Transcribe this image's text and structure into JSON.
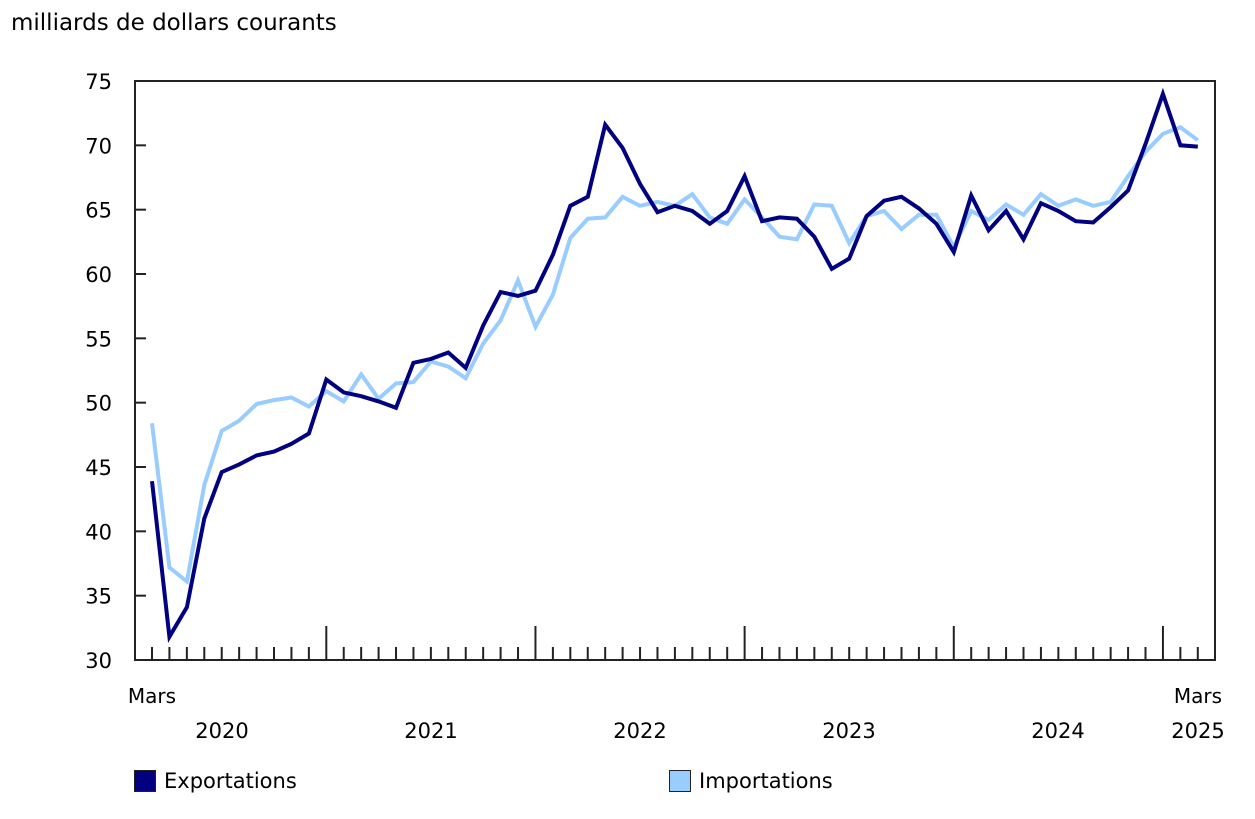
{
  "chart_data": {
    "type": "line",
    "title": "",
    "ylabel": "milliards de dollars courants",
    "xlabel": "",
    "ylim": [
      30,
      75
    ],
    "yticks": [
      30,
      35,
      40,
      45,
      50,
      55,
      60,
      65,
      70,
      75
    ],
    "grid": false,
    "legend_position": "bottom",
    "x_start_label": "Mars",
    "x_end_label": "Mars",
    "year_labels": [
      "2020",
      "2021",
      "2022",
      "2023",
      "2024",
      "2025"
    ],
    "x": [
      "2020-03",
      "2020-04",
      "2020-05",
      "2020-06",
      "2020-07",
      "2020-08",
      "2020-09",
      "2020-10",
      "2020-11",
      "2020-12",
      "2021-01",
      "2021-02",
      "2021-03",
      "2021-04",
      "2021-05",
      "2021-06",
      "2021-07",
      "2021-08",
      "2021-09",
      "2021-10",
      "2021-11",
      "2021-12",
      "2022-01",
      "2022-02",
      "2022-03",
      "2022-04",
      "2022-05",
      "2022-06",
      "2022-07",
      "2022-08",
      "2022-09",
      "2022-10",
      "2022-11",
      "2022-12",
      "2023-01",
      "2023-02",
      "2023-03",
      "2023-04",
      "2023-05",
      "2023-06",
      "2023-07",
      "2023-08",
      "2023-09",
      "2023-10",
      "2023-11",
      "2023-12",
      "2024-01",
      "2024-02",
      "2024-03",
      "2024-04",
      "2024-05",
      "2024-06",
      "2024-07",
      "2024-08",
      "2024-09",
      "2024-10",
      "2024-11",
      "2024-12",
      "2025-01",
      "2025-02",
      "2025-03"
    ],
    "series": [
      {
        "name": "Exportations",
        "color": "#000080",
        "values": [
          43.9,
          31.8,
          34.1,
          41.0,
          44.6,
          45.2,
          45.9,
          46.2,
          46.8,
          47.6,
          51.8,
          50.8,
          50.5,
          50.1,
          49.6,
          53.1,
          53.4,
          53.9,
          52.7,
          56.0,
          58.6,
          58.3,
          58.7,
          61.5,
          65.3,
          66.0,
          71.6,
          69.8,
          67.0,
          64.8,
          65.3,
          64.9,
          63.9,
          64.9,
          67.6,
          64.1,
          64.4,
          64.3,
          62.9,
          60.4,
          61.2,
          64.5,
          65.7,
          66.0,
          65.1,
          63.9,
          61.7,
          66.1,
          63.4,
          64.9,
          62.7,
          65.5,
          64.9,
          64.1,
          64.0,
          65.2,
          66.5,
          70.1,
          74.0,
          70.0,
          69.9
        ]
      },
      {
        "name": "Importations",
        "color": "#99ccff",
        "values": [
          48.4,
          37.2,
          36.1,
          43.6,
          47.8,
          48.6,
          49.9,
          50.2,
          50.4,
          49.7,
          50.9,
          50.1,
          52.2,
          50.3,
          51.5,
          51.6,
          53.2,
          52.8,
          51.9,
          54.6,
          56.4,
          59.5,
          55.9,
          58.4,
          62.8,
          64.3,
          64.4,
          66.0,
          65.3,
          65.6,
          65.3,
          66.2,
          64.4,
          63.9,
          65.8,
          64.4,
          62.9,
          62.7,
          65.4,
          65.3,
          62.4,
          64.5,
          64.9,
          63.5,
          64.6,
          64.6,
          62.1,
          64.9,
          64.2,
          65.4,
          64.6,
          66.2,
          65.3,
          65.8,
          65.3,
          65.6,
          67.6,
          69.5,
          70.9,
          71.4,
          70.4
        ]
      }
    ]
  },
  "legend": {
    "items": [
      {
        "label": "Exportations",
        "color": "#000080"
      },
      {
        "label": "Importations",
        "color": "#99ccff"
      }
    ]
  }
}
